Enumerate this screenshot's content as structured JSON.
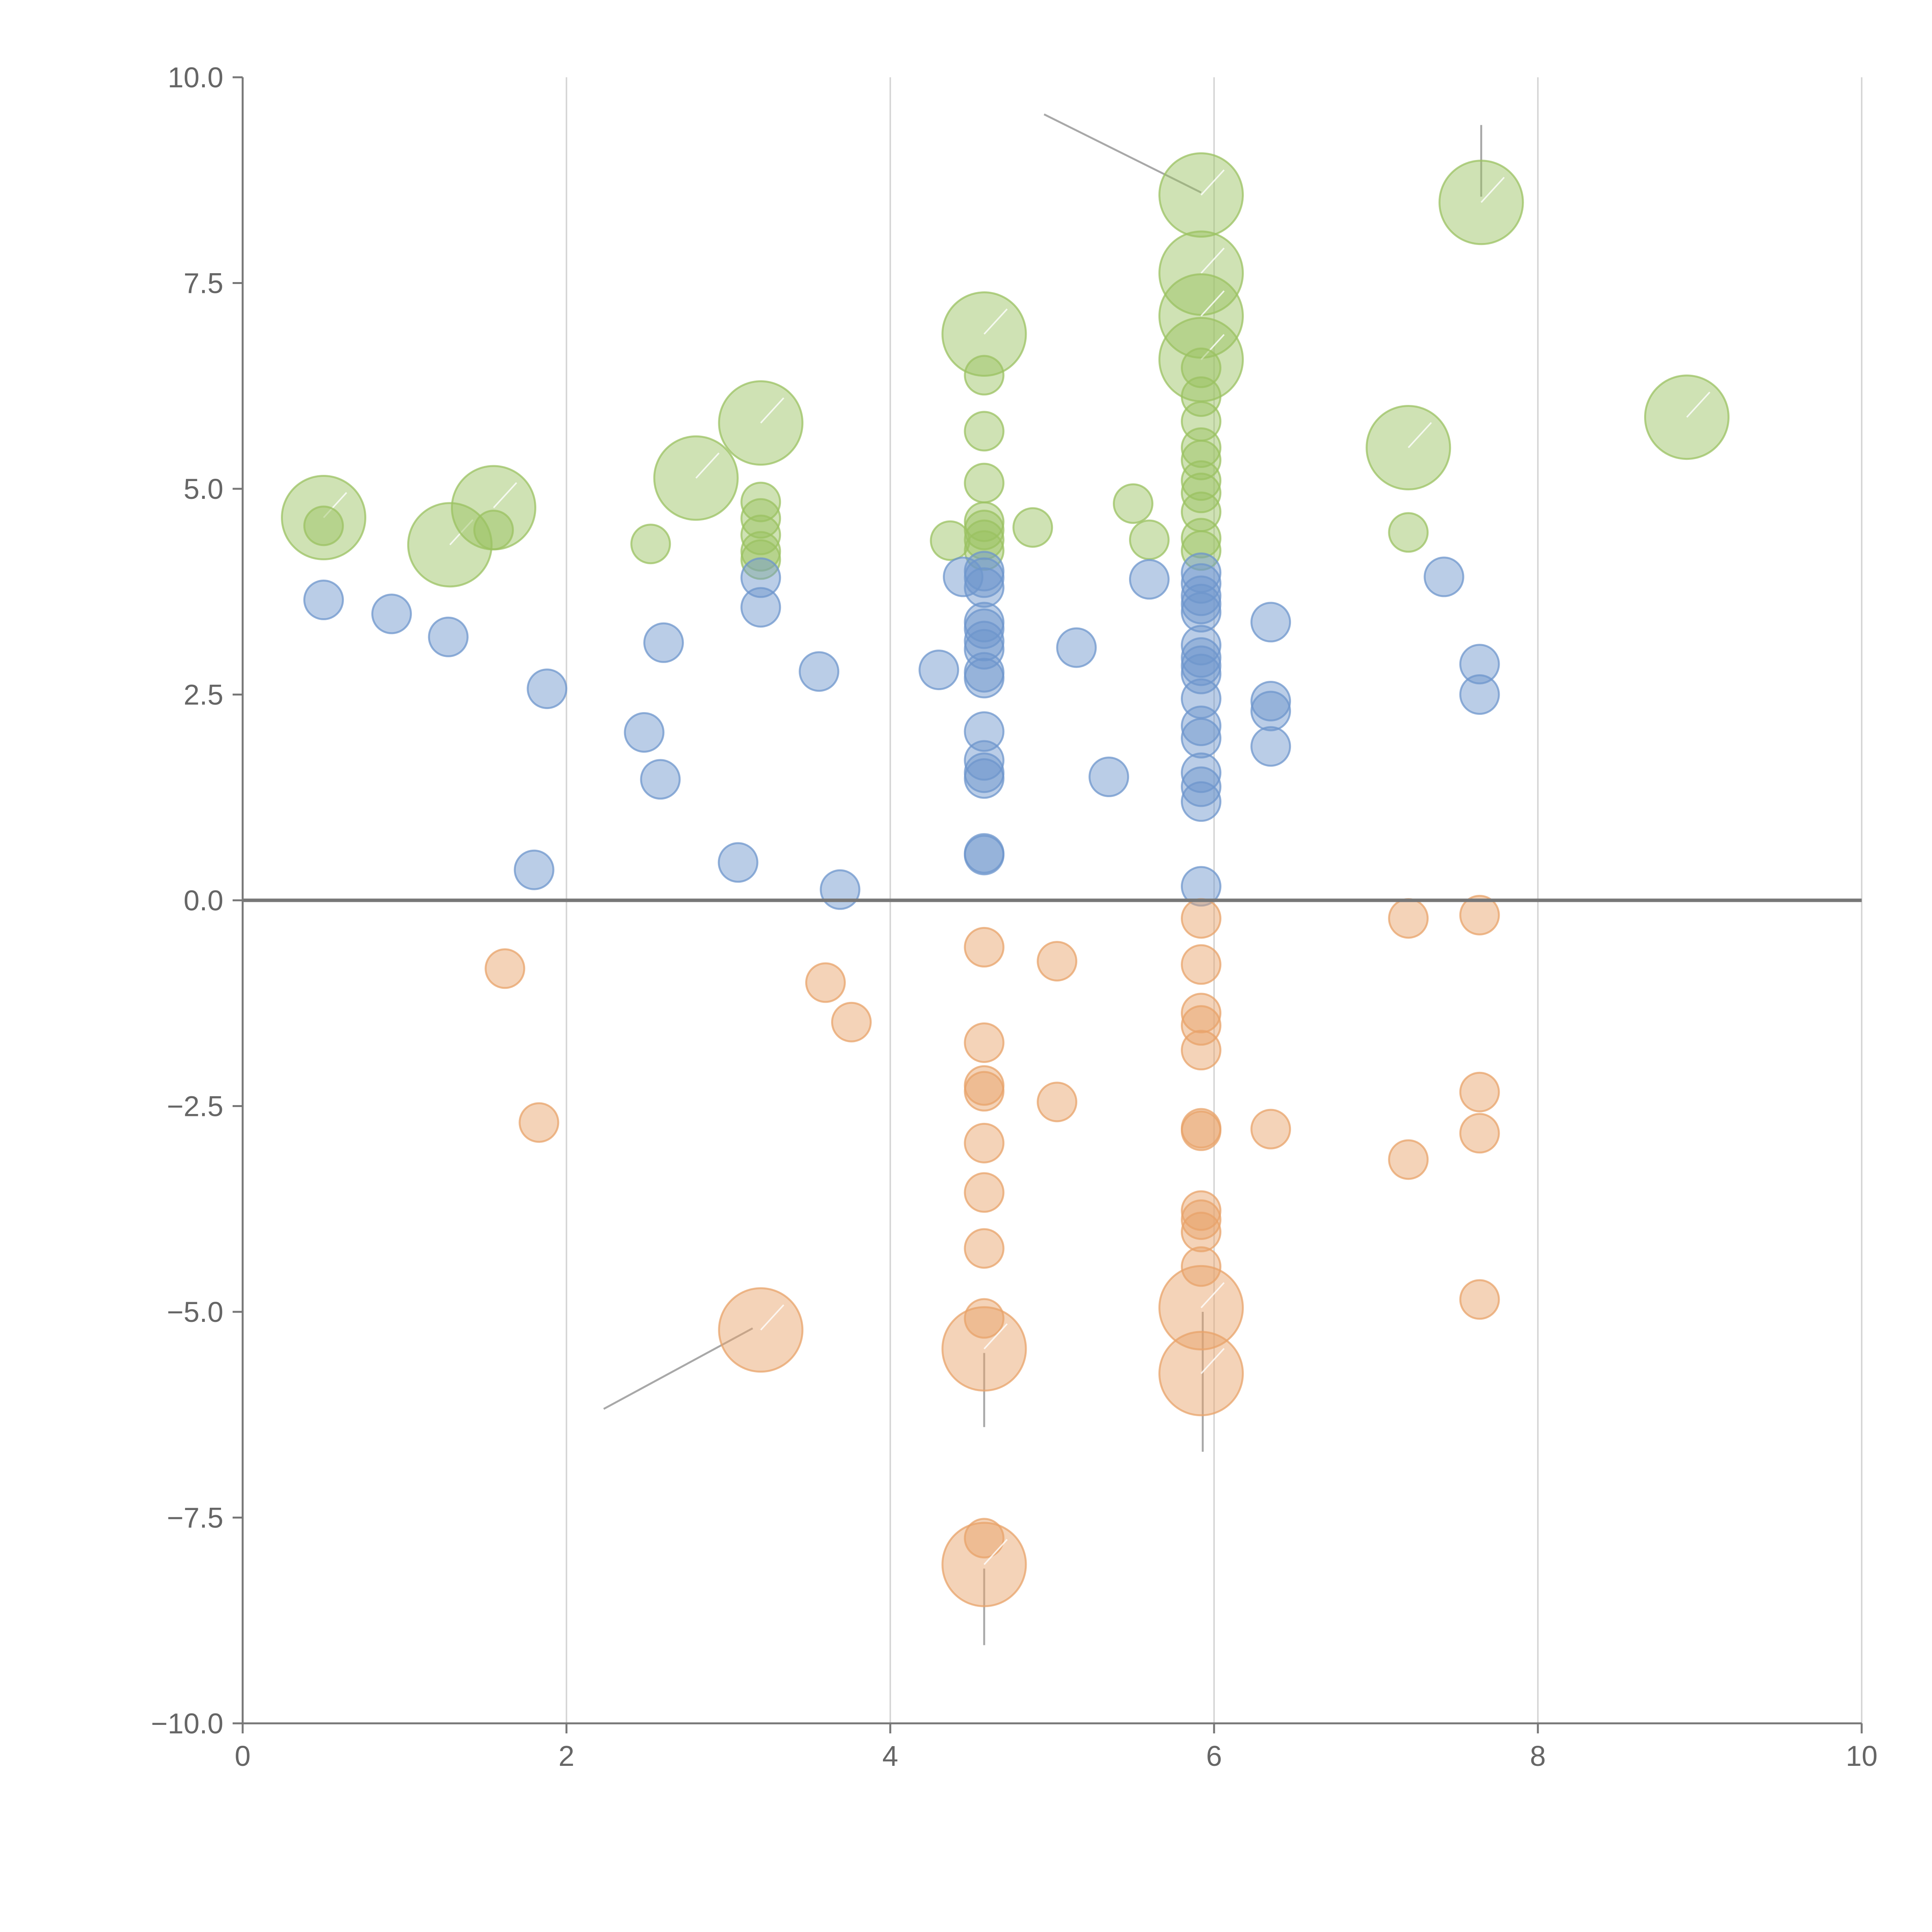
{
  "chart_data": {
    "type": "scatter",
    "title": "",
    "xlabel": "",
    "ylabel": "",
    "xlim": [
      0,
      10
    ],
    "ylim": [
      -10,
      10
    ],
    "grid": "vertical",
    "x_ticks": [
      0,
      2,
      4,
      6,
      8,
      10
    ],
    "x_tick_labels": [
      "0",
      "2",
      "4",
      "6",
      "8",
      "10"
    ],
    "y_ticks": [
      -10,
      -7.5,
      -5,
      -2.5,
      0,
      2.5,
      5,
      7.5,
      10
    ],
    "y_tick_labels": [
      "−10.0",
      "−7.5",
      "−5.0",
      "−2.5",
      "0.0",
      "2.5",
      "5.0",
      "7.5",
      "10.0"
    ],
    "series": [
      {
        "name": "green",
        "color": "#9bc262",
        "points": [
          [
            0.5,
            4.65,
            3
          ],
          [
            0.5,
            4.55,
            1
          ],
          [
            1.28,
            4.32,
            3
          ],
          [
            1.55,
            4.77,
            3
          ],
          [
            1.55,
            4.5,
            1
          ],
          [
            2.52,
            4.33,
            1
          ],
          [
            2.8,
            5.13,
            3
          ],
          [
            3.2,
            5.8,
            3
          ],
          [
            3.2,
            4.84,
            1
          ],
          [
            3.2,
            4.64,
            1
          ],
          [
            3.2,
            4.44,
            1
          ],
          [
            3.2,
            4.24,
            1
          ],
          [
            3.2,
            4.14,
            1
          ],
          [
            4.58,
            6.88,
            3
          ],
          [
            4.58,
            6.38,
            1
          ],
          [
            4.58,
            5.7,
            1
          ],
          [
            4.58,
            5.07,
            1
          ],
          [
            4.58,
            4.6,
            1
          ],
          [
            4.58,
            4.5,
            1
          ],
          [
            4.58,
            4.38,
            1
          ],
          [
            4.58,
            4.25,
            1
          ],
          [
            4.37,
            4.37,
            1
          ],
          [
            4.88,
            4.53,
            1
          ],
          [
            5.5,
            4.82,
            1
          ],
          [
            5.6,
            4.38,
            1
          ],
          [
            5.92,
            8.57,
            3
          ],
          [
            5.92,
            7.62,
            3
          ],
          [
            5.92,
            7.1,
            3
          ],
          [
            5.92,
            6.57,
            3
          ],
          [
            5.92,
            6.47,
            1
          ],
          [
            5.92,
            6.12,
            1
          ],
          [
            5.92,
            5.82,
            1
          ],
          [
            5.92,
            5.5,
            1
          ],
          [
            5.92,
            5.35,
            1
          ],
          [
            5.92,
            5.1,
            1
          ],
          [
            5.92,
            4.95,
            1
          ],
          [
            5.92,
            4.72,
            1
          ],
          [
            5.92,
            4.4,
            1
          ],
          [
            5.92,
            4.25,
            1
          ],
          [
            7.2,
            5.5,
            3
          ],
          [
            7.2,
            4.47,
            1
          ],
          [
            7.65,
            8.48,
            3
          ],
          [
            8.92,
            5.87,
            3
          ]
        ]
      },
      {
        "name": "blue",
        "color": "#6e96cc",
        "points": [
          [
            0.5,
            3.65,
            1
          ],
          [
            0.92,
            3.48,
            1
          ],
          [
            1.27,
            3.2,
            1
          ],
          [
            1.88,
            2.57,
            1
          ],
          [
            1.8,
            0.37,
            1
          ],
          [
            2.48,
            2.04,
            1
          ],
          [
            2.6,
            3.13,
            1
          ],
          [
            2.58,
            1.47,
            1
          ],
          [
            3.06,
            0.46,
            1
          ],
          [
            3.2,
            3.92,
            1
          ],
          [
            3.2,
            3.56,
            1
          ],
          [
            3.56,
            2.78,
            1
          ],
          [
            3.69,
            0.13,
            1
          ],
          [
            4.3,
            2.8,
            1
          ],
          [
            4.45,
            3.93,
            1
          ],
          [
            4.58,
            4.0,
            1
          ],
          [
            4.58,
            3.92,
            1
          ],
          [
            4.58,
            3.8,
            1
          ],
          [
            4.58,
            3.38,
            1
          ],
          [
            4.58,
            3.3,
            1
          ],
          [
            4.58,
            3.15,
            1
          ],
          [
            4.58,
            3.05,
            1
          ],
          [
            4.58,
            2.77,
            1
          ],
          [
            4.58,
            2.7,
            1
          ],
          [
            4.58,
            2.05,
            1
          ],
          [
            4.58,
            1.7,
            1
          ],
          [
            4.58,
            1.55,
            1
          ],
          [
            4.58,
            1.48,
            1
          ],
          [
            4.58,
            0.57,
            1
          ],
          [
            4.58,
            0.55,
            1
          ],
          [
            5.15,
            3.07,
            1
          ],
          [
            5.35,
            1.5,
            1
          ],
          [
            5.6,
            3.9,
            1
          ],
          [
            5.92,
            3.98,
            1
          ],
          [
            5.92,
            3.85,
            1
          ],
          [
            5.92,
            3.7,
            1
          ],
          [
            5.92,
            3.6,
            1
          ],
          [
            5.92,
            3.5,
            1
          ],
          [
            5.92,
            3.1,
            1
          ],
          [
            5.92,
            2.95,
            1
          ],
          [
            5.92,
            2.85,
            1
          ],
          [
            5.92,
            2.75,
            1
          ],
          [
            5.92,
            2.45,
            1
          ],
          [
            5.92,
            2.12,
            1
          ],
          [
            5.92,
            1.97,
            1
          ],
          [
            5.92,
            1.55,
            1
          ],
          [
            5.92,
            1.38,
            1
          ],
          [
            5.92,
            1.2,
            1
          ],
          [
            5.92,
            0.17,
            1
          ],
          [
            6.35,
            3.38,
            1
          ],
          [
            6.35,
            2.42,
            1
          ],
          [
            6.35,
            2.3,
            1
          ],
          [
            6.35,
            1.87,
            1
          ],
          [
            7.42,
            3.93,
            1
          ],
          [
            7.64,
            2.87,
            1
          ],
          [
            7.64,
            2.5,
            1
          ]
        ]
      },
      {
        "name": "orange",
        "color": "#e8a36a",
        "points": [
          [
            1.62,
            -0.83,
            1
          ],
          [
            1.83,
            -2.7,
            1
          ],
          [
            3.2,
            -5.22,
            3
          ],
          [
            3.6,
            -1.0,
            1
          ],
          [
            3.76,
            -1.48,
            1
          ],
          [
            4.58,
            -0.57,
            1
          ],
          [
            4.58,
            -1.73,
            1
          ],
          [
            4.58,
            -2.25,
            1
          ],
          [
            4.58,
            -2.32,
            1
          ],
          [
            4.58,
            -2.95,
            1
          ],
          [
            4.58,
            -3.55,
            1
          ],
          [
            4.58,
            -4.23,
            1
          ],
          [
            4.58,
            -5.08,
            1
          ],
          [
            4.58,
            -5.45,
            3
          ],
          [
            4.58,
            -7.75,
            1
          ],
          [
            4.58,
            -8.07,
            3
          ],
          [
            5.03,
            -0.74,
            1
          ],
          [
            5.03,
            -2.45,
            1
          ],
          [
            5.92,
            -0.22,
            1
          ],
          [
            5.92,
            -0.78,
            1
          ],
          [
            5.92,
            -1.37,
            1
          ],
          [
            5.92,
            -1.52,
            1
          ],
          [
            5.92,
            -1.82,
            1
          ],
          [
            5.92,
            -2.77,
            1
          ],
          [
            5.92,
            -2.8,
            1
          ],
          [
            5.92,
            -3.77,
            1
          ],
          [
            5.92,
            -3.88,
            1
          ],
          [
            5.92,
            -4.03,
            1
          ],
          [
            5.92,
            -4.45,
            1
          ],
          [
            5.92,
            -4.95,
            3
          ],
          [
            5.92,
            -5.75,
            3
          ],
          [
            6.35,
            -2.78,
            1
          ],
          [
            7.2,
            -0.22,
            1
          ],
          [
            7.2,
            -3.15,
            1
          ],
          [
            7.64,
            -0.18,
            1
          ],
          [
            7.64,
            -2.33,
            1
          ],
          [
            7.64,
            -2.83,
            1
          ],
          [
            7.64,
            -4.85,
            1
          ]
        ]
      }
    ],
    "annotation_leaders": [
      {
        "from": [
          5.92,
          8.6
        ],
        "to": [
          4.95,
          9.55
        ]
      },
      {
        "from": [
          7.65,
          8.55
        ],
        "to": [
          7.65,
          9.42
        ]
      },
      {
        "from": [
          3.15,
          -5.2
        ],
        "to": [
          2.23,
          -6.18
        ]
      },
      {
        "from": [
          4.58,
          -5.5
        ],
        "to": [
          4.58,
          -6.4
        ]
      },
      {
        "from": [
          5.93,
          -5.0
        ],
        "to": [
          5.93,
          -6.7
        ]
      },
      {
        "from": [
          4.58,
          -8.12
        ],
        "to": [
          4.58,
          -9.05
        ]
      }
    ]
  }
}
